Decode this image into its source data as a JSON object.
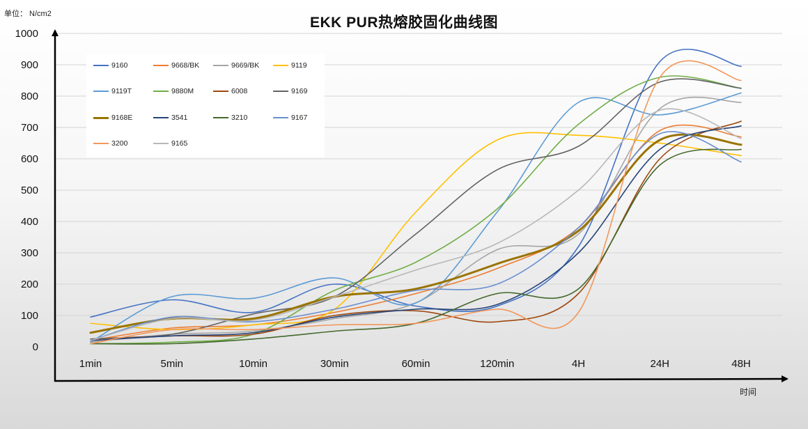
{
  "unit_label": "单位：  N/cm2",
  "chart_data": {
    "type": "line",
    "title": "EKK PUR热熔胶固化曲线图",
    "xlabel": "时间",
    "ylabel": "",
    "categories": [
      "1min",
      "5min",
      "10min",
      "30min",
      "60min",
      "120min",
      "4H",
      "24H",
      "48H"
    ],
    "ylim": [
      0,
      1000
    ],
    "yticks": [
      0,
      100,
      200,
      300,
      400,
      500,
      600,
      700,
      800,
      900,
      1000
    ],
    "grid": true,
    "legend_position": "top-left",
    "series": [
      {
        "name": "9160",
        "color": "#4472c4",
        "width": 1.6,
        "values": [
          95,
          150,
          110,
          200,
          130,
          130,
          320,
          910,
          895
        ]
      },
      {
        "name": "9668/BK",
        "color": "#ed7d31",
        "width": 1.6,
        "values": [
          20,
          60,
          70,
          110,
          170,
          250,
          380,
          690,
          670
        ]
      },
      {
        "name": "9669/BK",
        "color": "#a5a5a5",
        "width": 1.6,
        "values": [
          15,
          40,
          50,
          90,
          140,
          310,
          360,
          760,
          780
        ]
      },
      {
        "name": "9119",
        "color": "#ffc000",
        "width": 1.6,
        "values": [
          75,
          55,
          70,
          120,
          430,
          660,
          675,
          650,
          610
        ]
      },
      {
        "name": "9119T",
        "color": "#5b9bd5",
        "width": 1.6,
        "values": [
          15,
          160,
          155,
          220,
          140,
          430,
          780,
          740,
          810
        ]
      },
      {
        "name": "9880M",
        "color": "#70ad47",
        "width": 1.6,
        "values": [
          10,
          15,
          40,
          180,
          270,
          440,
          710,
          860,
          825
        ]
      },
      {
        "name": "6008",
        "color": "#9e480e",
        "width": 1.6,
        "values": [
          25,
          35,
          40,
          100,
          115,
          80,
          170,
          600,
          720
        ]
      },
      {
        "name": "9169",
        "color": "#636363",
        "width": 1.6,
        "values": [
          25,
          40,
          105,
          160,
          360,
          565,
          640,
          845,
          825
        ]
      },
      {
        "name": "9168E",
        "color": "#997300",
        "width": 3,
        "values": [
          45,
          90,
          90,
          160,
          185,
          265,
          370,
          660,
          645
        ]
      },
      {
        "name": "3541",
        "color": "#264478",
        "width": 1.6,
        "values": [
          20,
          35,
          45,
          95,
          120,
          135,
          300,
          630,
          705
        ]
      },
      {
        "name": "3210",
        "color": "#43682b",
        "width": 1.6,
        "values": [
          10,
          10,
          25,
          50,
          75,
          170,
          185,
          580,
          630
        ]
      },
      {
        "name": "9167",
        "color": "#698ed0",
        "width": 1.6,
        "values": [
          20,
          95,
          80,
          120,
          180,
          200,
          380,
          680,
          590
        ]
      },
      {
        "name": "3200",
        "color": "#f1975a",
        "width": 1.6,
        "values": [
          10,
          55,
          55,
          70,
          75,
          120,
          110,
          860,
          850
        ]
      },
      {
        "name": "9165",
        "color": "#b7b7b7",
        "width": 1.6,
        "values": [
          20,
          90,
          85,
          160,
          245,
          330,
          500,
          755,
          665
        ]
      }
    ]
  }
}
